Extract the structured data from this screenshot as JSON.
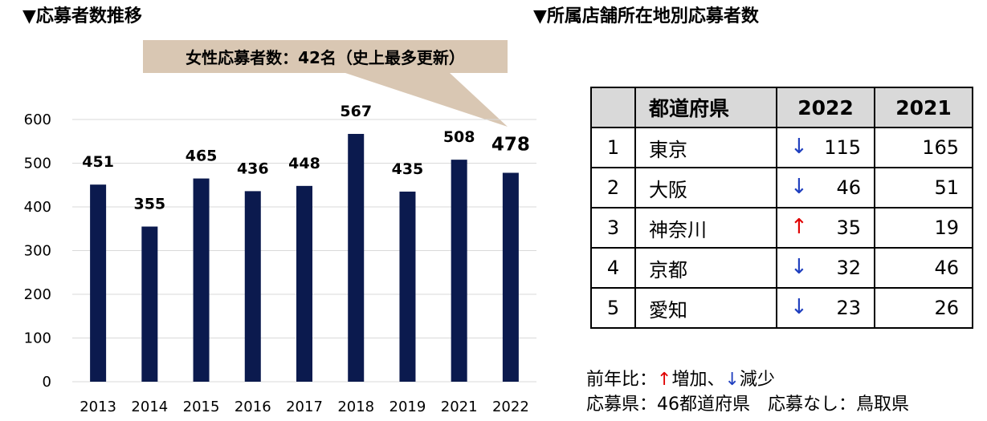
{
  "headings": {
    "left": "▼応募者数推移",
    "right": "▼所属店舗所在地別応募者数"
  },
  "callout": "女性応募者数：42名（史上最多更新）",
  "chart_data": {
    "type": "bar",
    "categories": [
      "2013",
      "2014",
      "2015",
      "2016",
      "2017",
      "2018",
      "2019",
      "2021",
      "2022"
    ],
    "values": [
      451,
      355,
      465,
      436,
      448,
      567,
      435,
      508,
      478
    ],
    "ylim": [
      0,
      600
    ],
    "yticks": [
      0,
      100,
      200,
      300,
      400,
      500,
      600
    ],
    "title": "",
    "xlabel": "",
    "ylabel": "",
    "grid": true,
    "bar_color": "#0b1a4e"
  },
  "table": {
    "headers": [
      "",
      "都道府県",
      "2022",
      "2021"
    ],
    "rows": [
      {
        "rank": "1",
        "pref": "東京",
        "arrow": "↓",
        "dir": "down",
        "v2022": "115",
        "v2021": "165"
      },
      {
        "rank": "2",
        "pref": "大阪",
        "arrow": "↓",
        "dir": "down",
        "v2022": "46",
        "v2021": "51"
      },
      {
        "rank": "3",
        "pref": "神奈川",
        "arrow": "↑",
        "dir": "up",
        "v2022": "35",
        "v2021": "19"
      },
      {
        "rank": "4",
        "pref": "京都",
        "arrow": "↓",
        "dir": "down",
        "v2022": "32",
        "v2021": "46"
      },
      {
        "rank": "5",
        "pref": "愛知",
        "arrow": "↓",
        "dir": "down",
        "v2022": "23",
        "v2021": "26"
      }
    ]
  },
  "notes": {
    "line1_prefix": "前年比：",
    "up_arrow": "↑",
    "up_label": "増加、",
    "down_arrow": "↓",
    "down_label": "減少",
    "line2": "応募県：46都道府県　応募なし：鳥取県"
  },
  "colors": {
    "bar": "#0b1a4e",
    "callout": "#d9c7b3",
    "up": "#e00000",
    "down": "#1f3fbf"
  }
}
